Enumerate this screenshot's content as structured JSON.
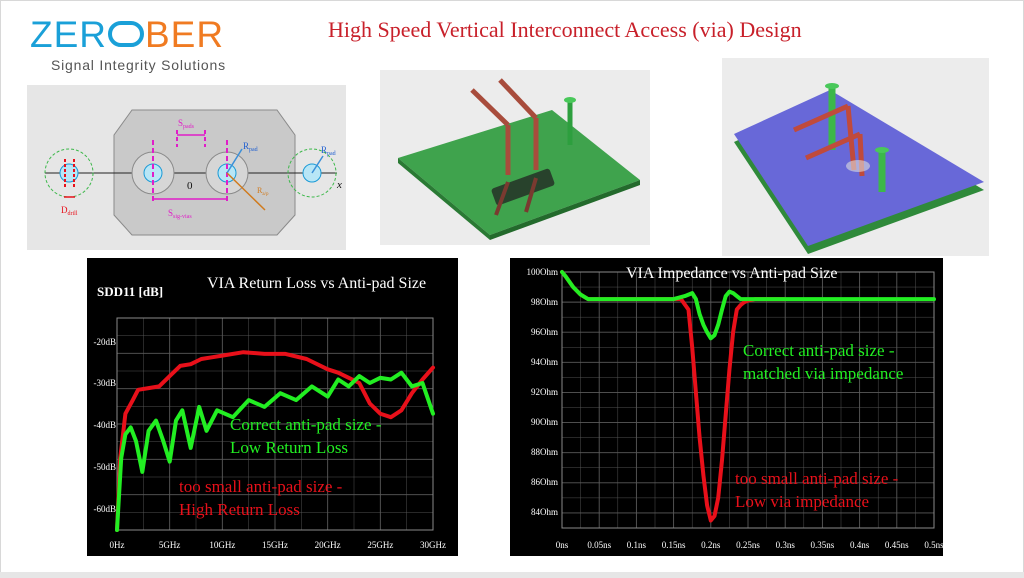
{
  "logo": {
    "word_left": "ZER",
    "word_right": "BER",
    "subtitle": "Signal Integrity Solutions"
  },
  "page_title": "High Speed Vertical Interconnect Access (via) Design",
  "diagram": {
    "labels": {
      "s_pads": "S",
      "s_pads_sub": "pads",
      "r_pad": "R",
      "r_pad_sub": "pad",
      "r_pad2": "R",
      "r_pad2_sub": "pad",
      "r_ap": "R",
      "r_ap_sub": "a/p",
      "d_drill": "D",
      "d_drill_sub": "drill",
      "s_sig": "S",
      "s_sig_sub": "sig-vias",
      "zero": "0",
      "x": "x"
    }
  },
  "colors": {
    "red_curve": "#e8101a",
    "green_curve": "#22ee22",
    "title_red": "#c8202a",
    "board_green": "#3fa34d",
    "board_blue": "#6868d8",
    "via_red": "#b5453a"
  },
  "chart_data": [
    {
      "type": "line",
      "title": "VIA Return Loss vs Anti-pad Size",
      "ylabel": "SDD11 [dB]",
      "xlabel": "",
      "x_ticks": [
        "0Hz",
        "5GHz",
        "10GHz",
        "15GHz",
        "20GHz",
        "25GHz",
        "30GHz"
      ],
      "y_ticks": [
        "-20dB",
        "-30dB",
        "-40dB",
        "-50dB",
        "-60dB"
      ],
      "xlim": [
        0,
        30
      ],
      "ylim": [
        -66,
        -4
      ],
      "grid": true,
      "annotations": [
        {
          "color": "green",
          "lines": [
            "Correct  anti-pad size -",
            "Low Return Loss"
          ]
        },
        {
          "color": "red",
          "lines": [
            "too small anti-pad size -",
            "High Return Loss"
          ]
        }
      ],
      "series": [
        {
          "color": "red",
          "x": [
            0,
            0.3,
            0.8,
            1.5,
            2,
            3,
            4,
            5,
            6,
            7,
            8,
            9,
            10,
            12,
            14,
            16,
            18,
            20,
            21,
            22,
            23,
            24,
            25,
            26,
            27,
            28,
            29,
            30
          ],
          "y": [
            -66,
            -45,
            -32,
            -28,
            -25,
            -24.5,
            -24,
            -21,
            -18,
            -17.5,
            -16,
            -15.5,
            -15,
            -14,
            -14.5,
            -14.5,
            -16,
            -19,
            -20,
            -21.5,
            -23,
            -29,
            -32,
            -33,
            -31,
            -26,
            -22,
            -18.5
          ]
        },
        {
          "color": "green",
          "x": [
            0,
            0.4,
            0.8,
            1.3,
            1.8,
            2.4,
            3,
            3.7,
            4.4,
            5,
            5.6,
            6.2,
            7,
            7.8,
            8.5,
            9.5,
            11,
            12.5,
            14,
            15.5,
            17,
            18.5,
            20,
            21,
            22,
            23,
            24,
            25,
            26,
            27,
            28,
            29,
            30
          ],
          "y": [
            -66,
            -45,
            -38,
            -36,
            -40,
            -49,
            -37,
            -34,
            -40,
            -46,
            -34,
            -31,
            -42,
            -30,
            -37,
            -31,
            -33,
            -28,
            -30,
            -26,
            -28,
            -24,
            -27,
            -22,
            -24,
            -21,
            -23,
            -21.5,
            -22,
            -20,
            -24,
            -23,
            -32
          ]
        }
      ]
    },
    {
      "type": "line",
      "title": "VIA Impedance vs Anti-pad Size",
      "ylabel": "",
      "xlabel": "",
      "x_ticks": [
        "0ns",
        "0.05ns",
        "0.1ns",
        "0.15ns",
        "0.2ns",
        "0.25ns",
        "0.3ns",
        "0.35ns",
        "0.4ns",
        "0.45ns",
        "0.5ns"
      ],
      "y_ticks": [
        "100Ohm",
        "98Ohm",
        "96Ohm",
        "94Ohm",
        "92Ohm",
        "90Ohm",
        "88Ohm",
        "86Ohm",
        "84Ohm"
      ],
      "xlim": [
        0,
        0.5
      ],
      "ylim": [
        83,
        100
      ],
      "grid": true,
      "annotations": [
        {
          "color": "green",
          "lines": [
            "Correct  anti-pad size -",
            "matched via impedance"
          ]
        },
        {
          "color": "red",
          "lines": [
            "too small anti-pad size -",
            "Low via impedance"
          ]
        }
      ],
      "series": [
        {
          "color": "red",
          "x": [
            0,
            0.005,
            0.015,
            0.025,
            0.035,
            0.05,
            0.1,
            0.15,
            0.16,
            0.17,
            0.175,
            0.18,
            0.185,
            0.19,
            0.195,
            0.2,
            0.205,
            0.21,
            0.215,
            0.22,
            0.225,
            0.23,
            0.235,
            0.24,
            0.245,
            0.25,
            0.26,
            0.28,
            0.3
          ],
          "y": [
            100,
            99.7,
            99,
            98.5,
            98.2,
            98.2,
            98.2,
            98.2,
            98.2,
            97.5,
            95,
            92,
            89,
            86.5,
            84.5,
            83.5,
            83.8,
            85,
            87.5,
            90.5,
            93.5,
            96,
            97.5,
            97.8,
            98,
            98.1,
            98.2,
            98.2,
            98.2
          ]
        },
        {
          "color": "green",
          "x": [
            0,
            0.005,
            0.015,
            0.025,
            0.035,
            0.05,
            0.1,
            0.15,
            0.165,
            0.175,
            0.18,
            0.185,
            0.19,
            0.195,
            0.2,
            0.205,
            0.21,
            0.215,
            0.22,
            0.225,
            0.23,
            0.235,
            0.24,
            0.25,
            0.27,
            0.3,
            0.4,
            0.5
          ],
          "y": [
            100,
            99.7,
            99,
            98.5,
            98.2,
            98.2,
            98.2,
            98.2,
            98.4,
            98.6,
            98.2,
            97.2,
            96.5,
            96,
            95.6,
            95.8,
            96.5,
            97.5,
            98.4,
            98.7,
            98.6,
            98.4,
            98.2,
            98.2,
            98.2,
            98.2,
            98.2,
            98.2
          ]
        }
      ]
    }
  ]
}
